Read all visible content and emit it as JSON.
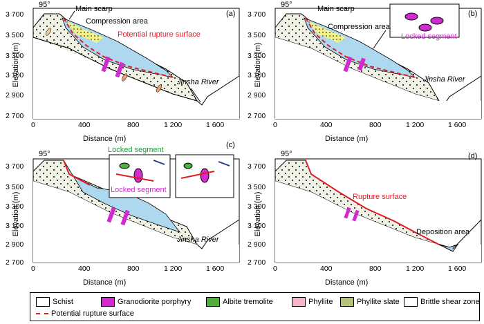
{
  "axes": {
    "ylabel": "Elevation (m)",
    "xlabel": "Distance (m)",
    "yticks": [
      "3 700",
      "3 500",
      "3 300",
      "3 100",
      "2 900",
      "2 700"
    ],
    "xticks": [
      "0",
      "400",
      "800",
      "1 200",
      "1 600"
    ],
    "dip": "95°"
  },
  "panels": {
    "a": {
      "letter": "(a)",
      "main_scarp": "Main scarp",
      "compression": "Compression area",
      "rupture": "Potential rupture surface",
      "river": "Jinsha River"
    },
    "b": {
      "letter": "(b)",
      "main_scarp": "Main scarp",
      "compression": "Compression area",
      "locked": "Locked segment",
      "river": "Jinsha  River"
    },
    "c": {
      "letter": "(c)",
      "locked_top": "Locked segment",
      "locked_bottom": "Locked segment",
      "river": "Jinsha River"
    },
    "d": {
      "letter": "(d)",
      "rupture": "Rupture surface",
      "deposition": "Deposition area"
    }
  },
  "legend": {
    "schist": "Schist",
    "granodiorite": "Granodiorite porphyry",
    "albite": "Albite tremolite",
    "phyllite": "Phyllite",
    "phyllite_slate": "Phyllite slate",
    "brittle": "Brittle shear zone",
    "potential": "Potential rupture surface"
  },
  "colors": {
    "slope": "#f0f2e6",
    "slide": "#aed8ef",
    "compression": "#f3f28a",
    "red": "#e01b24",
    "pink": "#d12bd0",
    "green": "#4fae3c"
  }
}
